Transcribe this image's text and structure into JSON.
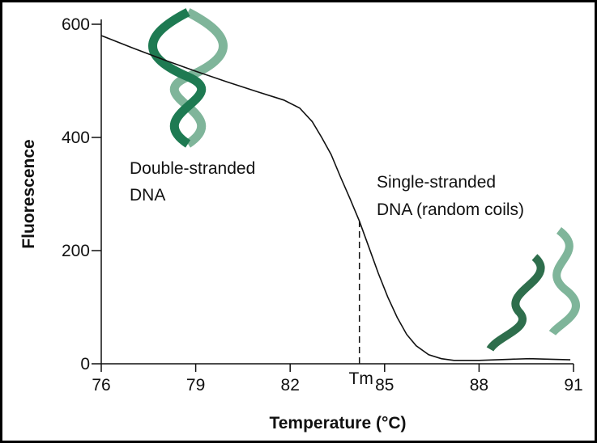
{
  "chart_data": {
    "type": "line",
    "x_label": "Temperature (°C)",
    "y_label": "Fluorescence",
    "x": [
      76,
      77,
      78,
      79,
      80,
      81,
      81.8,
      82.3,
      82.7,
      83,
      83.3,
      83.6,
      83.9,
      84.2,
      84.5,
      84.8,
      85.1,
      85.4,
      85.7,
      86,
      86.4,
      86.8,
      87.2,
      88,
      89,
      89.6,
      90.3,
      90.9
    ],
    "values": [
      580,
      558,
      537,
      517,
      498,
      480,
      466,
      452,
      428,
      400,
      370,
      330,
      292,
      252,
      206,
      160,
      118,
      82,
      52,
      32,
      16,
      9,
      6,
      6,
      8,
      9,
      8,
      7
    ],
    "color": "#111111",
    "xlim": [
      76,
      91
    ],
    "xticks": [
      76,
      79,
      82,
      85,
      88,
      91
    ],
    "ylim": [
      0,
      600
    ],
    "yticks": [
      0,
      200,
      400,
      600
    ],
    "grid": false,
    "tm_marker": {
      "label": "Tm",
      "x": 84.2,
      "y": 252
    },
    "annotations": [
      {
        "lines": [
          "Double-stranded",
          "DNA"
        ]
      },
      {
        "lines": [
          "Single-stranded",
          "DNA (random coils)"
        ]
      }
    ]
  }
}
